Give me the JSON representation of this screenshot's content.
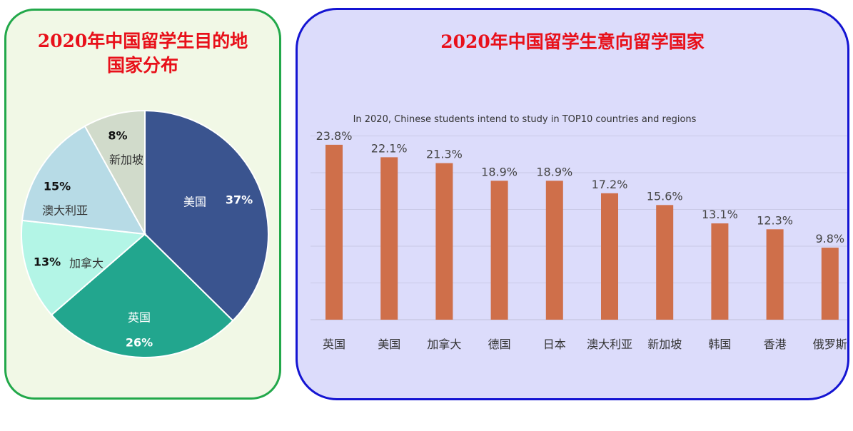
{
  "left_panel": {
    "title_line1": "2020年中国留学生目的地",
    "title_line2": "国家分布"
  },
  "right_panel": {
    "title": "2020年中国留学生意向留学国家"
  },
  "chart_data": [
    {
      "type": "pie",
      "slices": [
        {
          "label": "美国",
          "value": 37,
          "pct_label": "37%",
          "color": "#3a548f"
        },
        {
          "label": "英国",
          "value": 26,
          "pct_label": "26%",
          "color": "#22a68e"
        },
        {
          "label": "加拿大",
          "value": 13,
          "pct_label": "13%",
          "color": "#b3f5e6"
        },
        {
          "label": "澳大利亚",
          "value": 15,
          "pct_label": "15%",
          "color": "#b7dbe6"
        },
        {
          "label": "新加坡",
          "value": 8,
          "pct_label": "8%",
          "color": "#d1dbcb"
        }
      ]
    },
    {
      "type": "bar",
      "title": "In 2020, Chinese students intend to study in TOP10 countries and regions",
      "categories": [
        "英国",
        "美国",
        "加拿大",
        "德国",
        "日本",
        "澳大利亚",
        "新加坡",
        "韩国",
        "香港",
        "俄罗斯"
      ],
      "values": [
        23.8,
        22.1,
        21.3,
        18.9,
        18.9,
        17.2,
        15.6,
        13.1,
        12.3,
        9.8
      ],
      "value_labels": [
        "23.8%",
        "22.1%",
        "21.3%",
        "18.9%",
        "18.9%",
        "17.2%",
        "15.6%",
        "13.1%",
        "12.3%",
        "9.8%"
      ],
      "bar_color": "#cf6f4a",
      "ylim": [
        0,
        25
      ],
      "grid": true
    }
  ]
}
